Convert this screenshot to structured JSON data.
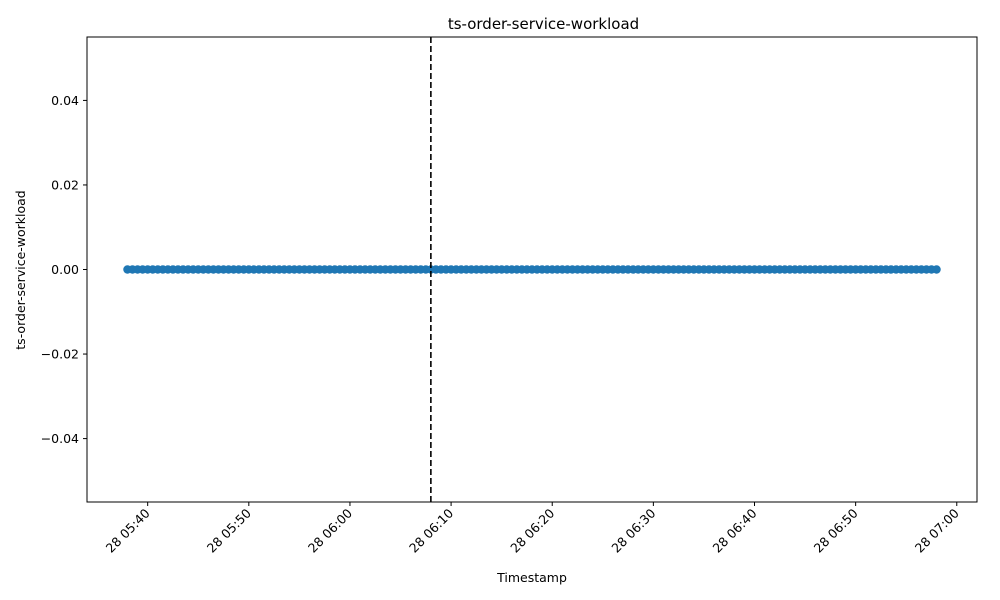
{
  "chart_data": {
    "type": "scatter",
    "title": "ts-order-service-workload",
    "xlabel": "Timestamp",
    "ylabel": "ts-order-service-workload",
    "x_range": [
      "28 05:38",
      "28 06:58"
    ],
    "xlim": [
      "28 05:34",
      "28 07:02"
    ],
    "x_step_seconds": 30,
    "y_value": 0.0,
    "ylim": [
      -0.055,
      0.055
    ],
    "x_ticks": [
      "28 05:40",
      "28 05:50",
      "28 06:00",
      "28 06:10",
      "28 06:20",
      "28 06:30",
      "28 06:40",
      "28 06:50",
      "28 07:00"
    ],
    "y_ticks": [
      "0.04",
      "0.02",
      "0.00",
      "−0.02",
      "−0.04"
    ],
    "y_tick_values": [
      0.04,
      0.02,
      0.0,
      -0.02,
      -0.04
    ],
    "vline": {
      "x": "28 06:08",
      "style": "dashed",
      "color": "#000000"
    },
    "marker_color": "#1f77b4",
    "grid": false,
    "x_tick_rotation": 45
  }
}
